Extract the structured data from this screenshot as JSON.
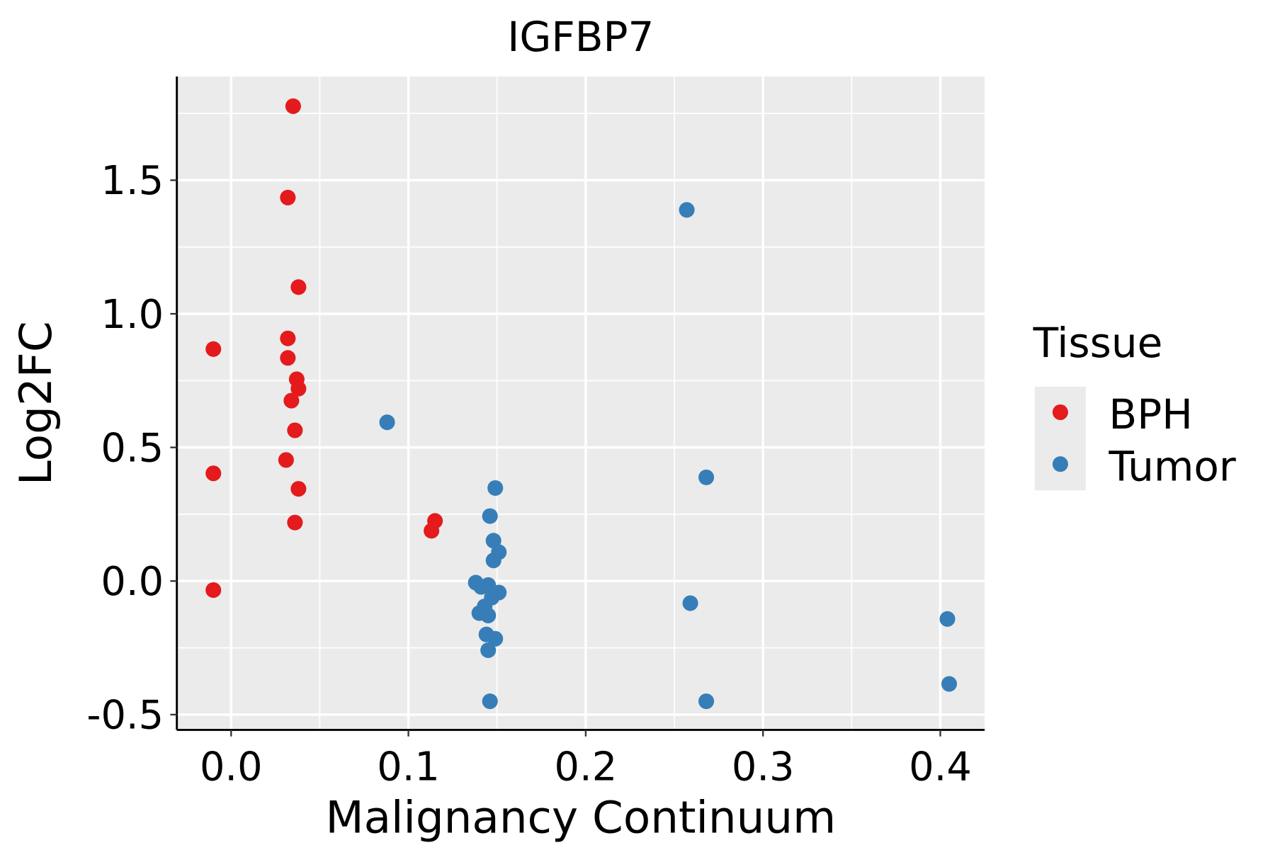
{
  "chart_data": {
    "type": "scatter",
    "title": "IGFBP7",
    "xlabel": "Malignancy Continuum",
    "ylabel": "Log2FC",
    "xlim": [
      -0.0306,
      0.425
    ],
    "ylim": [
      -0.557,
      1.888
    ],
    "xticks": [
      0.0,
      0.1,
      0.2,
      0.3,
      0.4
    ],
    "xtick_labels": [
      "0.0",
      "0.1",
      "0.2",
      "0.3",
      "0.4"
    ],
    "yticks": [
      -0.5,
      0.0,
      0.5,
      1.0,
      1.5
    ],
    "ytick_labels": [
      "-0.5",
      "0.0",
      "0.5",
      "1.0",
      "1.5"
    ],
    "grid": true,
    "legend": {
      "title": "Tissue",
      "placement": "right"
    },
    "series": [
      {
        "name": "BPH",
        "color": "#E41A1C",
        "points": [
          [
            0.035,
            1.777
          ],
          [
            0.032,
            1.435
          ],
          [
            0.038,
            1.1
          ],
          [
            -0.01,
            0.868
          ],
          [
            0.032,
            0.908
          ],
          [
            0.032,
            0.835
          ],
          [
            0.037,
            0.755
          ],
          [
            0.038,
            0.72
          ],
          [
            0.034,
            0.675
          ],
          [
            0.036,
            0.564
          ],
          [
            0.031,
            0.453
          ],
          [
            -0.01,
            0.403
          ],
          [
            0.038,
            0.345
          ],
          [
            0.036,
            0.219
          ],
          [
            0.115,
            0.225
          ],
          [
            0.113,
            0.188
          ],
          [
            -0.01,
            -0.034
          ]
        ]
      },
      {
        "name": "Tumor",
        "color": "#377EB8",
        "points": [
          [
            0.257,
            1.389
          ],
          [
            0.088,
            0.594
          ],
          [
            0.268,
            0.388
          ],
          [
            0.149,
            0.348
          ],
          [
            0.146,
            0.243
          ],
          [
            0.148,
            0.151
          ],
          [
            0.151,
            0.108
          ],
          [
            0.148,
            0.077
          ],
          [
            0.138,
            -0.006
          ],
          [
            0.141,
            -0.022
          ],
          [
            0.145,
            -0.015
          ],
          [
            0.151,
            -0.043
          ],
          [
            0.147,
            -0.062
          ],
          [
            0.143,
            -0.095
          ],
          [
            0.14,
            -0.12
          ],
          [
            0.145,
            -0.129
          ],
          [
            0.259,
            -0.083
          ],
          [
            0.144,
            -0.2
          ],
          [
            0.149,
            -0.216
          ],
          [
            0.145,
            -0.259
          ],
          [
            0.146,
            -0.45
          ],
          [
            0.268,
            -0.45
          ],
          [
            0.404,
            -0.142
          ],
          [
            0.405,
            -0.385
          ]
        ]
      }
    ]
  }
}
